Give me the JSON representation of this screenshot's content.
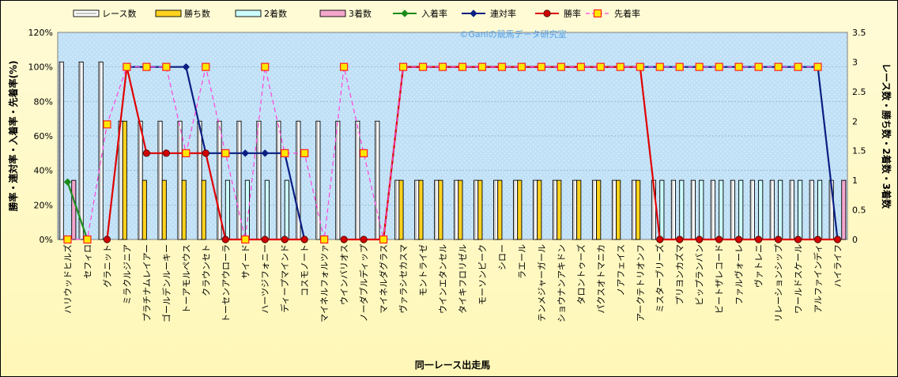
{
  "watermark": "©Ganiの競馬データ研究室",
  "chart_data": {
    "type": "bar",
    "title": "",
    "xlabel": "同一レース出走馬",
    "ylabel_left": "勝率・連対率・入着率・先着率(%)",
    "ylabel_right": "レース数・勝ち数・2着数・3着数",
    "y_left_ticks": [
      "0%",
      "20%",
      "40%",
      "60%",
      "80%",
      "100%",
      "120%"
    ],
    "y_right_ticks": [
      "0",
      "0.5",
      "1",
      "1.5",
      "2",
      "2.5",
      "3",
      "3.5"
    ],
    "ylim_left": [
      0,
      120
    ],
    "ylim_right": [
      0,
      3.5
    ],
    "grid": true,
    "legend_position": "top",
    "categories": [
      "ハリウッドヒルズ",
      "セフィロ",
      "グラニット",
      "ミラクルジニア",
      "プラチナムレイアー",
      "ゴールデンルーキー",
      "トーアモルペウス",
      "クラウンセト",
      "トーセンアウローラ",
      "サイード",
      "ハーツジフォニー",
      "ディープマインド",
      "コスモノート",
      "マイネルフォルツァ",
      "ウインバリオス",
      "ノーダブルディップ",
      "マイネルダグラス",
      "ヴァラシセカスマ",
      "モントライゼ",
      "ウインエタンセル",
      "タイキフロリゼル",
      "モーソンピーク",
      "シロー",
      "ラエール",
      "テンメジャーガール",
      "ショウナンアキドン",
      "タロントゥーズ",
      "パクスオトマニカ",
      "ノアフェイス",
      "アークテトリオンフ",
      "ミスターブリーズ",
      "プリヨンカズマ",
      "ビップランバン",
      "ビートザレコード",
      "ファルヴォーレ",
      "ヴァトレニ",
      "リレーションシップ",
      "ワールドスケール",
      "アルファインディ",
      "ハイライフ"
    ],
    "series": [
      {
        "name": "レース数",
        "kind": "bar",
        "axis": "right",
        "color": "#ffffff",
        "values": [
          3,
          3,
          3,
          2,
          2,
          2,
          2,
          2,
          2,
          2,
          2,
          2,
          2,
          2,
          2,
          2,
          2,
          1,
          1,
          1,
          1,
          1,
          1,
          1,
          1,
          1,
          1,
          1,
          1,
          1,
          1,
          1,
          1,
          1,
          1,
          1,
          1,
          1,
          1,
          1
        ]
      },
      {
        "name": "勝ち数",
        "kind": "bar",
        "axis": "right",
        "color": "#ffd21e",
        "values": [
          0,
          0,
          0,
          2,
          1,
          1,
          1,
          1,
          0,
          0,
          0,
          0,
          0,
          0,
          0,
          0,
          0,
          1,
          1,
          1,
          1,
          1,
          1,
          1,
          1,
          1,
          1,
          1,
          1,
          1,
          0,
          0,
          0,
          0,
          0,
          0,
          0,
          0,
          0,
          0
        ]
      },
      {
        "name": "2着数",
        "kind": "bar",
        "axis": "right",
        "color": "#ccfcfc",
        "values": [
          0,
          0,
          0,
          0,
          0,
          0,
          0,
          0,
          1,
          1,
          1,
          1,
          0,
          0,
          0,
          0,
          0,
          0,
          0,
          0,
          0,
          0,
          0,
          0,
          0,
          0,
          0,
          0,
          0,
          0,
          1,
          1,
          1,
          1,
          1,
          1,
          1,
          1,
          1,
          0
        ]
      },
      {
        "name": "3着数",
        "kind": "bar",
        "axis": "right",
        "color": "#f4a6cc",
        "values": [
          1,
          0,
          0,
          0,
          0,
          0,
          0,
          0,
          0,
          0,
          0,
          0,
          0,
          0,
          0,
          0,
          0,
          0,
          0,
          0,
          0,
          0,
          0,
          0,
          0,
          0,
          0,
          0,
          0,
          0,
          0,
          0,
          0,
          0,
          0,
          0,
          0,
          0,
          0,
          1
        ]
      },
      {
        "name": "入着率",
        "kind": "line",
        "axis": "left",
        "color": "#1a8c1a",
        "marker": "diamond",
        "values": [
          33.3,
          0,
          null,
          null,
          null,
          null,
          null,
          null,
          null,
          null,
          null,
          null,
          null,
          null,
          null,
          null,
          null,
          null,
          null,
          null,
          null,
          null,
          null,
          null,
          null,
          null,
          null,
          null,
          null,
          null,
          null,
          null,
          null,
          null,
          null,
          null,
          null,
          null,
          null,
          null
        ]
      },
      {
        "name": "連対率",
        "kind": "line",
        "axis": "left",
        "color": "#0a1e82",
        "marker": "diamond",
        "values": [
          null,
          null,
          null,
          100,
          100,
          100,
          100,
          50,
          50,
          50,
          50,
          50,
          0,
          null,
          null,
          null,
          null,
          100,
          100,
          100,
          100,
          100,
          100,
          100,
          100,
          100,
          100,
          100,
          100,
          100,
          100,
          100,
          100,
          100,
          100,
          100,
          100,
          100,
          100,
          0
        ]
      },
      {
        "name": "勝率",
        "kind": "line",
        "axis": "left",
        "color": "#e00000",
        "marker": "circle",
        "values": [
          null,
          null,
          0,
          100,
          50,
          50,
          50,
          50,
          0,
          0,
          0,
          0,
          0,
          null,
          0,
          0,
          0,
          100,
          100,
          100,
          100,
          100,
          100,
          100,
          100,
          100,
          100,
          100,
          100,
          100,
          0,
          0,
          0,
          0,
          0,
          0,
          0,
          0,
          0,
          0
        ]
      },
      {
        "name": "先着率",
        "kind": "line",
        "axis": "left",
        "color": "#ff44dd",
        "marker": "square",
        "dashed": true,
        "values": [
          0,
          0,
          66.7,
          100,
          100,
          100,
          50,
          100,
          50,
          0,
          100,
          50,
          50,
          0,
          100,
          50,
          0,
          100,
          100,
          100,
          100,
          100,
          100,
          100,
          100,
          100,
          100,
          100,
          100,
          100,
          100,
          100,
          100,
          100,
          100,
          100,
          100,
          100,
          100,
          null
        ]
      }
    ]
  }
}
